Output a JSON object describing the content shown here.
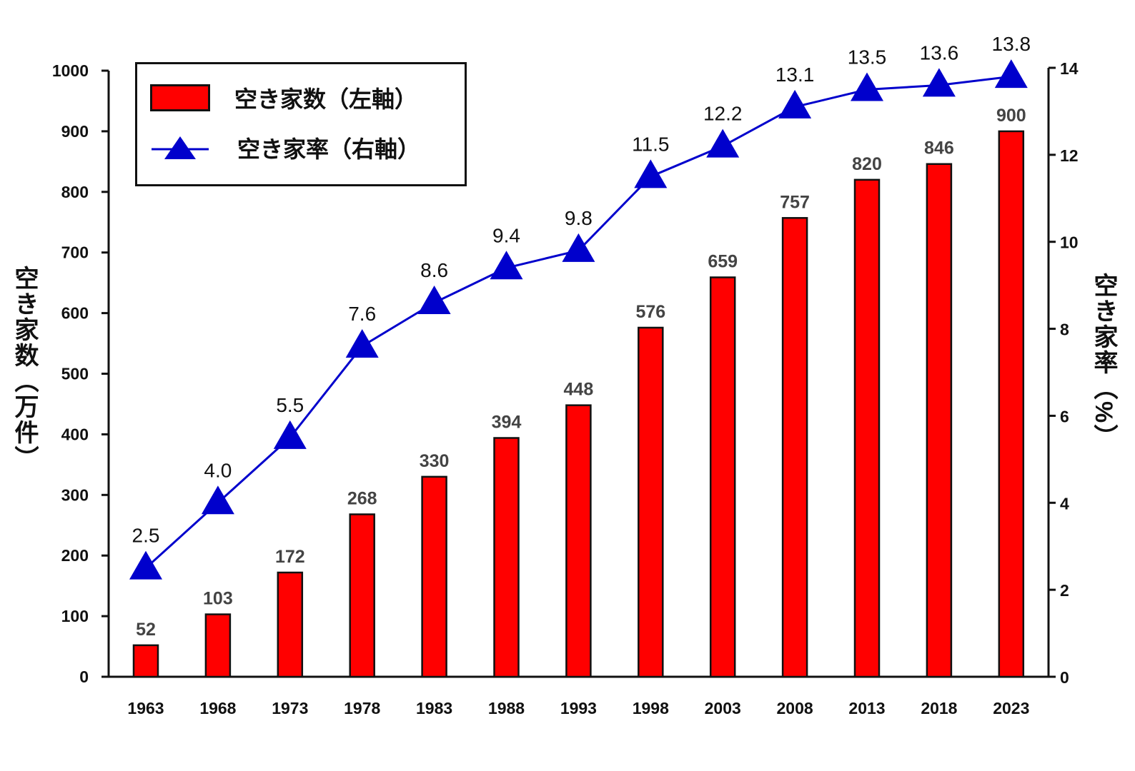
{
  "chart_data": {
    "type": "bar+line",
    "categories": [
      "1963",
      "1968",
      "1973",
      "1978",
      "1983",
      "1988",
      "1993",
      "1998",
      "2003",
      "2008",
      "2013",
      "2018",
      "2023"
    ],
    "series": [
      {
        "name": "空き家数（左軸）",
        "type": "bar",
        "axis": "left",
        "color": "#ff0000",
        "values": [
          52,
          103,
          172,
          268,
          330,
          394,
          448,
          576,
          659,
          757,
          820,
          846,
          900
        ]
      },
      {
        "name": "空き家率（右軸）",
        "type": "line",
        "axis": "right",
        "color": "#0000cc",
        "marker": "triangle",
        "values": [
          2.5,
          4.0,
          5.5,
          7.6,
          8.6,
          9.4,
          9.8,
          11.5,
          12.2,
          13.1,
          13.5,
          13.6,
          13.8
        ]
      }
    ],
    "ylabel_left": "空き家数（万件）",
    "ylabel_right": "空き家率（%）",
    "ylim_left": [
      0,
      1000
    ],
    "yticks_left": [
      0,
      100,
      200,
      300,
      400,
      500,
      600,
      700,
      800,
      900,
      1000
    ],
    "ylim_right": [
      0,
      14
    ],
    "yticks_right": [
      0,
      2,
      4,
      6,
      8,
      10,
      12,
      14
    ],
    "legend": {
      "placement": "top-left",
      "entries": [
        "空き家数（左軸）",
        "空き家率（右軸）"
      ]
    },
    "grid": false
  }
}
